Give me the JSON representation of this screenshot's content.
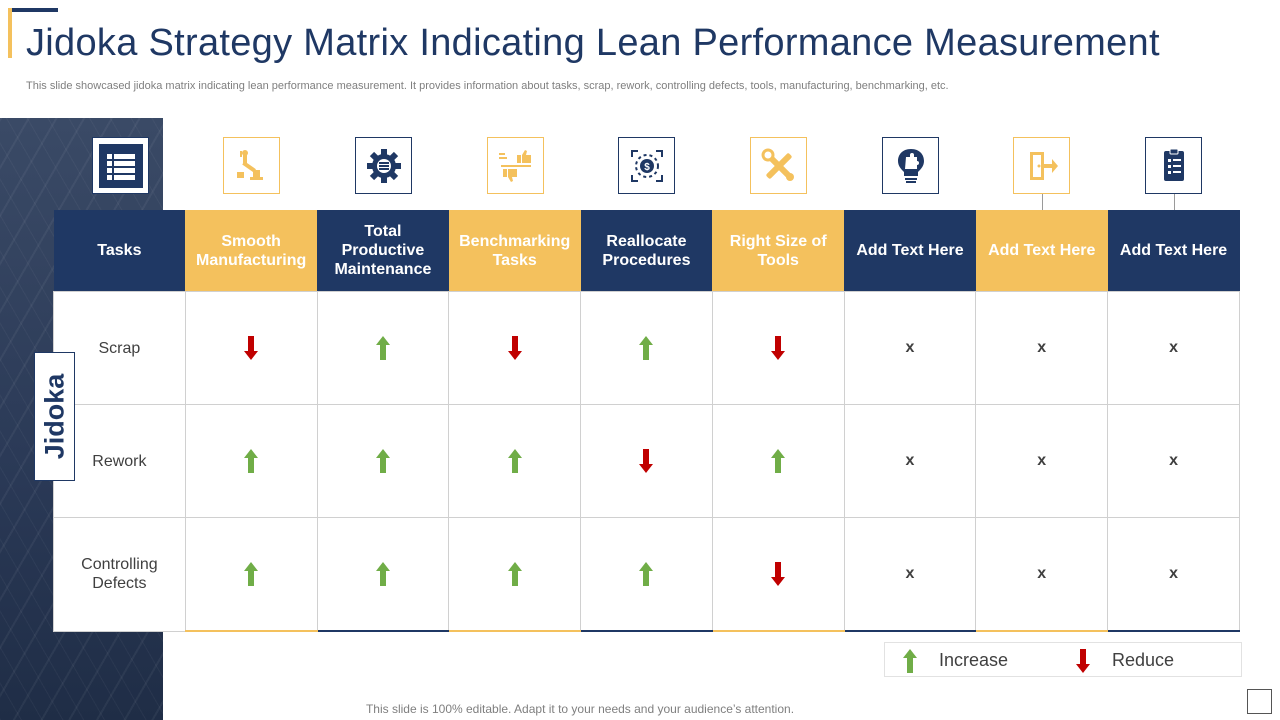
{
  "title": "Jidoka Strategy Matrix Indicating Lean Performance Measurement",
  "subtitle": "This slide showcased jidoka matrix indicating lean performance measurement. It provides information about tasks, scrap, rework, controlling defects, tools, manufacturing, benchmarking, etc.",
  "side_label": "Jidoka",
  "colors": {
    "navy": "#1f3864",
    "gold": "#f4c15d",
    "increase": "#70ad47",
    "reduce": "#c00000"
  },
  "icons": [
    "list-icon",
    "robot-arm-icon",
    "gear-icon",
    "thumbs-up-down-icon",
    "dollar-target-icon",
    "tools-icon",
    "lightbulb-puzzle-icon",
    "exit-door-icon",
    "clipboard-checklist-icon"
  ],
  "header": {
    "tasks": "Tasks",
    "columns": [
      {
        "label": "Smooth Manufacturing",
        "color": "gold"
      },
      {
        "label": "Total Productive Maintenance",
        "color": "navy"
      },
      {
        "label": "Benchmarking Tasks",
        "color": "gold"
      },
      {
        "label": "Reallocate Procedures",
        "color": "navy"
      },
      {
        "label": "Right Size of Tools",
        "color": "gold"
      },
      {
        "label": "Add Text Here",
        "color": "navy"
      },
      {
        "label": "Add Text Here",
        "color": "gold"
      },
      {
        "label": "Add Text Here",
        "color": "navy"
      }
    ]
  },
  "rows": [
    {
      "label": "Scrap",
      "cells": [
        "reduce",
        "increase",
        "reduce",
        "increase",
        "reduce",
        "x",
        "x",
        "x"
      ]
    },
    {
      "label": "Rework",
      "cells": [
        "increase",
        "increase",
        "increase",
        "reduce",
        "increase",
        "x",
        "x",
        "x"
      ]
    },
    {
      "label": "Controlling Defects",
      "cells": [
        "increase",
        "increase",
        "increase",
        "increase",
        "reduce",
        "x",
        "x",
        "x"
      ]
    }
  ],
  "x_mark": "x",
  "legend": {
    "increase": "Increase",
    "reduce": "Reduce"
  },
  "footer": "This slide is 100% editable. Adapt it to your needs and your audience’s attention."
}
